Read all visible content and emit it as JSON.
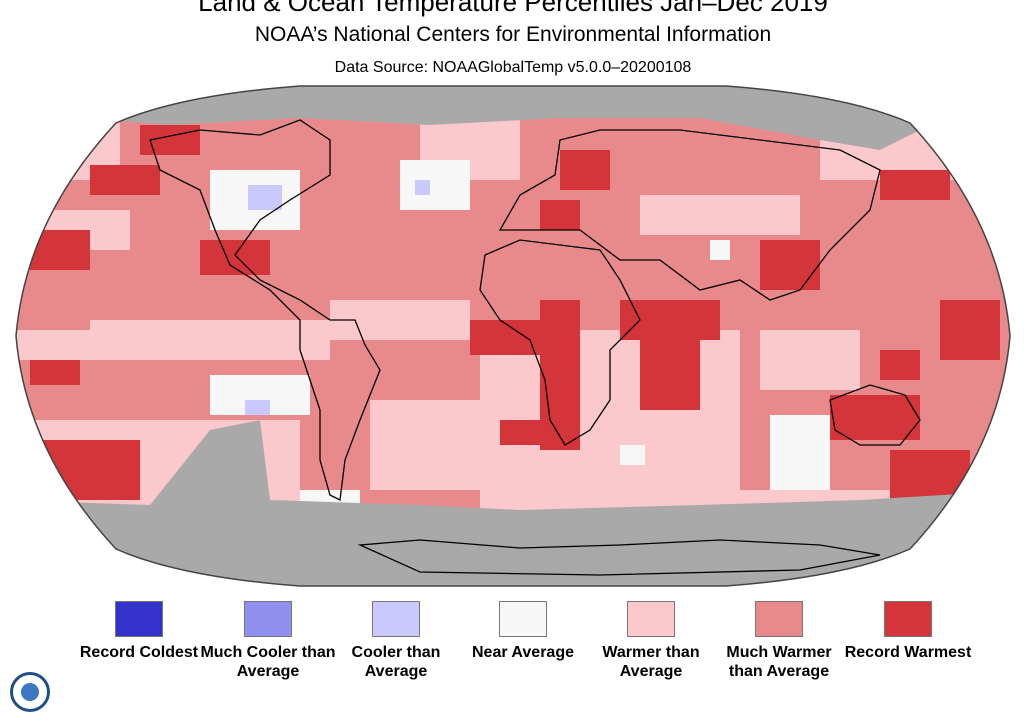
{
  "header": {
    "title": "Land & Ocean Temperature Percentiles Jan–Dec 2019",
    "subtitle": "NOAA’s National Centers for Environmental Information",
    "source": "Data Source: NOAAGlobalTemp v5.0.0–20200108"
  },
  "colors": {
    "record_coldest": "#3333cc",
    "much_cooler": "#9090ee",
    "cooler": "#c9c9ff",
    "near_average": "#f7f7f7",
    "warmer": "#fbc9cc",
    "much_warmer": "#e88a8c",
    "record_warmest": "#d3353a",
    "no_data": "#a9a9a9",
    "coastline": "#000000"
  },
  "legend": [
    {
      "key": "record_coldest",
      "label": "Record Coldest",
      "color": "#3333cc"
    },
    {
      "key": "much_cooler",
      "label": "Much Cooler than Average",
      "color": "#9090ee"
    },
    {
      "key": "cooler",
      "label": "Cooler than Average",
      "color": "#c9c9ff"
    },
    {
      "key": "near_average",
      "label": "Near Average",
      "color": "#f7f7f7"
    },
    {
      "key": "warmer",
      "label": "Warmer than Average",
      "color": "#fbc9cc"
    },
    {
      "key": "much_warmer",
      "label": "Much Warmer than Average",
      "color": "#e88a8c"
    },
    {
      "key": "record_warmest",
      "label": "Record Warmest",
      "color": "#d3353a"
    }
  ],
  "logo": {
    "name": "noaa-logo-icon"
  }
}
